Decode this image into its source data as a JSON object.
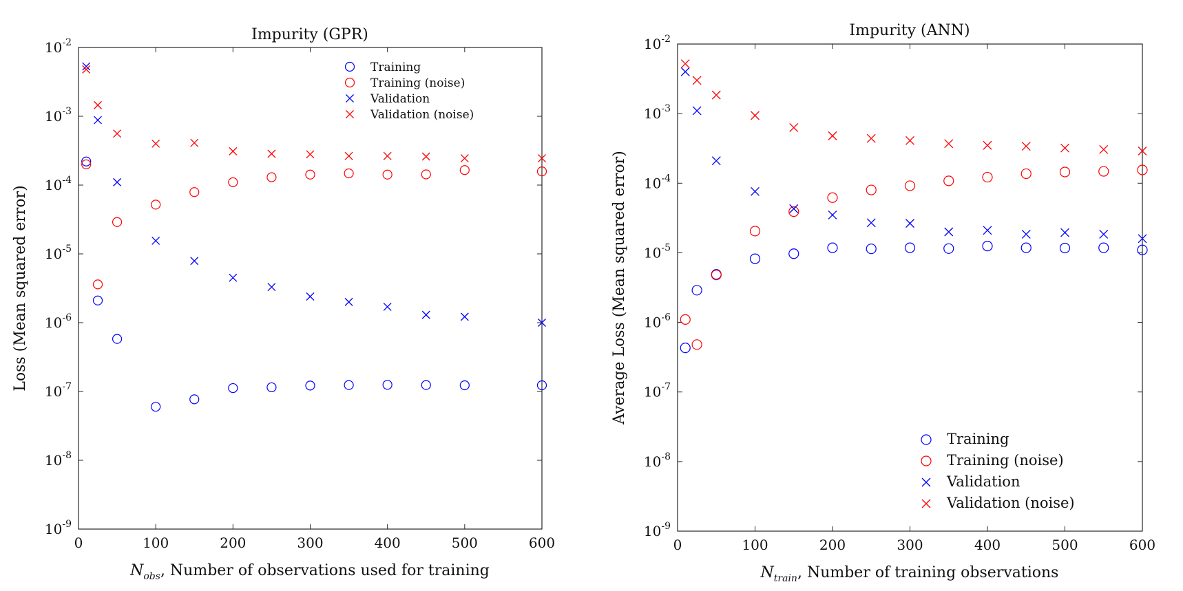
{
  "chart_data": [
    {
      "type": "scatter",
      "title": "Impurity (GPR)",
      "xlabel_symbol": "N",
      "xlabel_sub": "obs",
      "xlabel_rest": ", Number of observations used for training",
      "ylabel": "Loss (Mean squared error)",
      "xlim": [
        0,
        600
      ],
      "ylim": [
        1e-09,
        0.01
      ],
      "yscale": "log",
      "grid": false,
      "legend_position": "top-right",
      "x_ticks": [
        "0",
        "100",
        "200",
        "300",
        "400",
        "500",
        "600"
      ],
      "y_tick_base": "10",
      "y_tick_exponents": [
        "-9",
        "-8",
        "-7",
        "-6",
        "-5",
        "-4",
        "-3",
        "-2"
      ],
      "series": [
        {
          "name": "Training",
          "marker": "circle",
          "color": "#0000ff",
          "x": [
            10,
            25,
            50,
            100,
            150,
            200,
            250,
            300,
            350,
            400,
            450,
            500,
            600
          ],
          "y": [
            0.00022,
            2.1e-06,
            5.8e-07,
            6e-08,
            7.7e-08,
            1.12e-07,
            1.15e-07,
            1.22e-07,
            1.24e-07,
            1.25e-07,
            1.24e-07,
            1.23e-07,
            1.23e-07
          ]
        },
        {
          "name": "Training (noise)",
          "marker": "circle",
          "color": "#ff0000",
          "x": [
            10,
            25,
            50,
            100,
            150,
            200,
            250,
            300,
            350,
            400,
            450,
            500,
            600
          ],
          "y": [
            0.0002,
            3.6e-06,
            2.9e-05,
            5.2e-05,
            7.9e-05,
            0.00011,
            0.00013,
            0.000142,
            0.000148,
            0.000142,
            0.000143,
            0.000165,
            0.000158
          ]
        },
        {
          "name": "Validation",
          "marker": "x",
          "color": "#0000ff",
          "x": [
            10,
            25,
            50,
            100,
            150,
            200,
            250,
            300,
            350,
            400,
            450,
            500,
            600
          ],
          "y": [
            0.0053,
            0.00088,
            0.00011,
            1.55e-05,
            7.9e-06,
            4.5e-06,
            3.3e-06,
            2.4e-06,
            2e-06,
            1.7e-06,
            1.3e-06,
            1.22e-06,
            1e-06
          ]
        },
        {
          "name": "Validation (noise)",
          "marker": "x",
          "color": "#ff0000",
          "x": [
            10,
            25,
            50,
            100,
            150,
            200,
            250,
            300,
            350,
            400,
            450,
            500,
            600
          ],
          "y": [
            0.0048,
            0.00145,
            0.00056,
            0.0004,
            0.00041,
            0.00031,
            0.000285,
            0.00028,
            0.000265,
            0.000265,
            0.00026,
            0.000245,
            0.000245
          ]
        }
      ]
    },
    {
      "type": "scatter",
      "title": "Impurity (ANN)",
      "xlabel_symbol": "N",
      "xlabel_sub": "train",
      "xlabel_rest": ", Number of training observations",
      "ylabel": "Average Loss (Mean squared error)",
      "xlim": [
        0,
        600
      ],
      "ylim": [
        1e-09,
        0.01
      ],
      "yscale": "log",
      "grid": false,
      "legend_position": "bottom-right",
      "x_ticks": [
        "0",
        "100",
        "200",
        "300",
        "400",
        "500",
        "600"
      ],
      "y_tick_base": "10",
      "y_tick_exponents": [
        "-9",
        "-8",
        "-7",
        "-6",
        "-5",
        "-4",
        "-3",
        "-2"
      ],
      "series": [
        {
          "name": "Training",
          "marker": "circle",
          "color": "#0000ff",
          "x": [
            10,
            25,
            50,
            100,
            150,
            200,
            250,
            300,
            350,
            400,
            450,
            500,
            550,
            600
          ],
          "y": [
            4.3e-07,
            2.9e-06,
            4.9e-06,
            8.2e-06,
            9.7e-06,
            1.18e-05,
            1.14e-05,
            1.18e-05,
            1.15e-05,
            1.25e-05,
            1.18e-05,
            1.17e-05,
            1.18e-05,
            1.1e-05
          ]
        },
        {
          "name": "Training (noise)",
          "marker": "circle",
          "color": "#ff0000",
          "x": [
            10,
            25,
            50,
            100,
            150,
            200,
            250,
            300,
            350,
            400,
            450,
            500,
            550,
            600
          ],
          "y": [
            1.1e-06,
            4.8e-07,
            4.8e-06,
            2.05e-05,
            3.9e-05,
            6.2e-05,
            8e-05,
            9.2e-05,
            0.000108,
            0.000122,
            0.000137,
            0.000145,
            0.000148,
            0.000155
          ]
        },
        {
          "name": "Validation",
          "marker": "x",
          "color": "#0000ff",
          "x": [
            10,
            25,
            50,
            100,
            150,
            200,
            250,
            300,
            350,
            400,
            450,
            500,
            550,
            600
          ],
          "y": [
            0.004,
            0.0011,
            0.00021,
            7.6e-05,
            4.3e-05,
            3.5e-05,
            2.7e-05,
            2.65e-05,
            2e-05,
            2.1e-05,
            1.85e-05,
            1.95e-05,
            1.85e-05,
            1.6e-05
          ]
        },
        {
          "name": "Validation (noise)",
          "marker": "x",
          "color": "#ff0000",
          "x": [
            10,
            25,
            50,
            100,
            150,
            200,
            250,
            300,
            350,
            400,
            450,
            500,
            550,
            600
          ],
          "y": [
            0.0052,
            0.003,
            0.00185,
            0.00094,
            0.00063,
            0.00048,
            0.00044,
            0.00041,
            0.00037,
            0.00035,
            0.00034,
            0.00032,
            0.000305,
            0.00029
          ]
        }
      ]
    }
  ]
}
